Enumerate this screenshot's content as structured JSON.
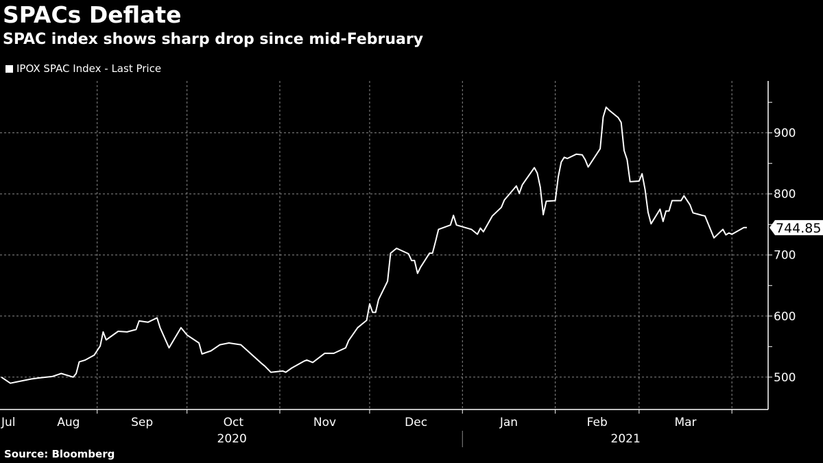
{
  "title": "SPACs Deflate",
  "subtitle": "SPAC index shows sharp drop since mid-February",
  "source": "Source: Bloomberg",
  "colors": {
    "background": "#000000",
    "line": "#ffffff",
    "grid": "#888888"
  },
  "chart_data": {
    "type": "line",
    "legend": {
      "position": "top-left",
      "entries": [
        "IPOX SPAC Index - Last Price"
      ]
    },
    "grid": true,
    "x_axis": {
      "type": "date",
      "range": [
        "2020-07-31",
        "2021-04-06"
      ],
      "month_labels": [
        "Jul",
        "Aug",
        "Sep",
        "Oct",
        "Nov",
        "Dec",
        "Jan",
        "Feb",
        "Mar"
      ],
      "year_labels": [
        "2020",
        "2021"
      ]
    },
    "y_axis": {
      "position": "right",
      "range": [
        447,
        985
      ],
      "ticks": [
        500,
        600,
        700,
        800,
        900
      ]
    },
    "last_value_label": "744.85",
    "series": [
      {
        "name": "IPOX SPAC Index - Last Price",
        "points": [
          [
            "2020-07-31",
            500
          ],
          [
            "2020-08-03",
            490
          ],
          [
            "2020-08-05",
            492
          ],
          [
            "2020-08-10",
            497
          ],
          [
            "2020-08-13",
            499
          ],
          [
            "2020-08-17",
            501
          ],
          [
            "2020-08-20",
            506
          ],
          [
            "2020-08-24",
            500
          ],
          [
            "2020-08-25",
            506
          ],
          [
            "2020-08-26",
            525
          ],
          [
            "2020-08-28",
            528
          ],
          [
            "2020-08-31",
            536
          ],
          [
            "2020-09-02",
            551
          ],
          [
            "2020-09-03",
            574
          ],
          [
            "2020-09-04",
            561
          ],
          [
            "2020-09-08",
            575
          ],
          [
            "2020-09-11",
            574
          ],
          [
            "2020-09-14",
            578
          ],
          [
            "2020-09-15",
            592
          ],
          [
            "2020-09-18",
            590
          ],
          [
            "2020-09-21",
            597
          ],
          [
            "2020-09-22",
            581
          ],
          [
            "2020-09-25",
            548
          ],
          [
            "2020-09-29",
            581
          ],
          [
            "2020-10-01",
            569
          ],
          [
            "2020-10-05",
            556
          ],
          [
            "2020-10-06",
            538
          ],
          [
            "2020-10-09",
            543
          ],
          [
            "2020-10-12",
            553
          ],
          [
            "2020-10-15",
            556
          ],
          [
            "2020-10-19",
            553
          ],
          [
            "2020-10-26",
            522
          ],
          [
            "2020-10-27",
            518
          ],
          [
            "2020-10-29",
            508
          ],
          [
            "2020-11-02",
            510
          ],
          [
            "2020-11-03",
            508
          ],
          [
            "2020-11-05",
            515
          ],
          [
            "2020-11-09",
            526
          ],
          [
            "2020-11-10",
            528
          ],
          [
            "2020-11-12",
            524
          ],
          [
            "2020-11-16",
            539
          ],
          [
            "2020-11-19",
            539
          ],
          [
            "2020-11-23",
            548
          ],
          [
            "2020-11-24",
            560
          ],
          [
            "2020-11-27",
            581
          ],
          [
            "2020-11-30",
            593
          ],
          [
            "2020-12-01",
            620
          ],
          [
            "2020-12-02",
            606
          ],
          [
            "2020-12-03",
            606
          ],
          [
            "2020-12-04",
            627
          ],
          [
            "2020-12-07",
            657
          ],
          [
            "2020-12-08",
            703
          ],
          [
            "2020-12-10",
            711
          ],
          [
            "2020-12-14",
            702
          ],
          [
            "2020-12-15",
            691
          ],
          [
            "2020-12-16",
            691
          ],
          [
            "2020-12-17",
            670
          ],
          [
            "2020-12-18",
            680
          ],
          [
            "2020-12-21",
            703
          ],
          [
            "2020-12-22",
            703
          ],
          [
            "2020-12-23",
            722
          ],
          [
            "2020-12-24",
            742
          ],
          [
            "2020-12-28",
            749
          ],
          [
            "2020-12-29",
            765
          ],
          [
            "2020-12-30",
            749
          ],
          [
            "2021-01-04",
            742
          ],
          [
            "2021-01-06",
            734
          ],
          [
            "2021-01-07",
            744
          ],
          [
            "2021-01-08",
            738
          ],
          [
            "2021-01-11",
            764
          ],
          [
            "2021-01-14",
            778
          ],
          [
            "2021-01-15",
            790
          ],
          [
            "2021-01-19",
            813
          ],
          [
            "2021-01-20",
            801
          ],
          [
            "2021-01-21",
            815
          ],
          [
            "2021-01-22",
            822
          ],
          [
            "2021-01-25",
            843
          ],
          [
            "2021-01-26",
            834
          ],
          [
            "2021-01-27",
            811
          ],
          [
            "2021-01-28",
            766
          ],
          [
            "2021-01-29",
            788
          ],
          [
            "2021-02-01",
            789
          ],
          [
            "2021-02-02",
            828
          ],
          [
            "2021-02-03",
            852
          ],
          [
            "2021-02-04",
            860
          ],
          [
            "2021-02-05",
            858
          ],
          [
            "2021-02-08",
            865
          ],
          [
            "2021-02-10",
            864
          ],
          [
            "2021-02-11",
            856
          ],
          [
            "2021-02-12",
            844
          ],
          [
            "2021-02-16",
            874
          ],
          [
            "2021-02-17",
            926
          ],
          [
            "2021-02-18",
            942
          ],
          [
            "2021-02-19",
            937
          ],
          [
            "2021-02-22",
            925
          ],
          [
            "2021-02-23",
            917
          ],
          [
            "2021-02-24",
            871
          ],
          [
            "2021-02-25",
            856
          ],
          [
            "2021-02-26",
            820
          ],
          [
            "2021-03-01",
            821
          ],
          [
            "2021-03-02",
            833
          ],
          [
            "2021-03-03",
            807
          ],
          [
            "2021-03-04",
            770
          ],
          [
            "2021-03-05",
            751
          ],
          [
            "2021-03-08",
            775
          ],
          [
            "2021-03-09",
            755
          ],
          [
            "2021-03-10",
            772
          ],
          [
            "2021-03-11",
            772
          ],
          [
            "2021-03-12",
            789
          ],
          [
            "2021-03-15",
            789
          ],
          [
            "2021-03-16",
            797
          ],
          [
            "2021-03-18",
            782
          ],
          [
            "2021-03-19",
            769
          ],
          [
            "2021-03-22",
            765
          ],
          [
            "2021-03-23",
            764
          ],
          [
            "2021-03-26",
            728
          ],
          [
            "2021-03-29",
            742
          ],
          [
            "2021-03-30",
            733
          ],
          [
            "2021-03-31",
            736
          ],
          [
            "2021-04-01",
            734
          ],
          [
            "2021-04-05",
            745
          ],
          [
            "2021-04-06",
            744.85
          ]
        ]
      }
    ]
  }
}
